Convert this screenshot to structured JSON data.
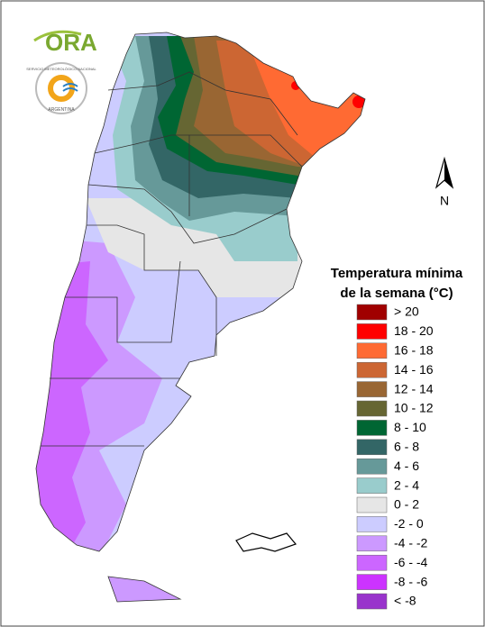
{
  "logo": {
    "text": "ORA"
  },
  "seal": {
    "top": "SERVICIO METEOROLÓGICO NACIONAL",
    "bottom": "ARGENTINA"
  },
  "compass": {
    "label": "N"
  },
  "legend": {
    "title": [
      "Temperatura mínima",
      "de la semana (°C)"
    ],
    "items": [
      {
        "label": "> 20",
        "color": "#a00000"
      },
      {
        "label": "18 - 20",
        "color": "#ff0000"
      },
      {
        "label": "16 - 18",
        "color": "#ff6a33"
      },
      {
        "label": "14 - 16",
        "color": "#cc6633"
      },
      {
        "label": "12 - 14",
        "color": "#996633"
      },
      {
        "label": "10 - 12",
        "color": "#666633"
      },
      {
        "label": "8 - 10",
        "color": "#006633"
      },
      {
        "label": "6 - 8",
        "color": "#336666"
      },
      {
        "label": "4 - 6",
        "color": "#669999"
      },
      {
        "label": "2 - 4",
        "color": "#99cccc"
      },
      {
        "label": "0 - 2",
        "color": "#e6e6e6"
      },
      {
        "label": "-2 - 0",
        "color": "#ccccff"
      },
      {
        "label": "-4 - -2",
        "color": "#cc99ff"
      },
      {
        "label": "-6 - -4",
        "color": "#cc66ff"
      },
      {
        "label": "-8 - -6",
        "color": "#cc33ff"
      },
      {
        "label": "< -8",
        "color": "#9933cc"
      }
    ]
  }
}
